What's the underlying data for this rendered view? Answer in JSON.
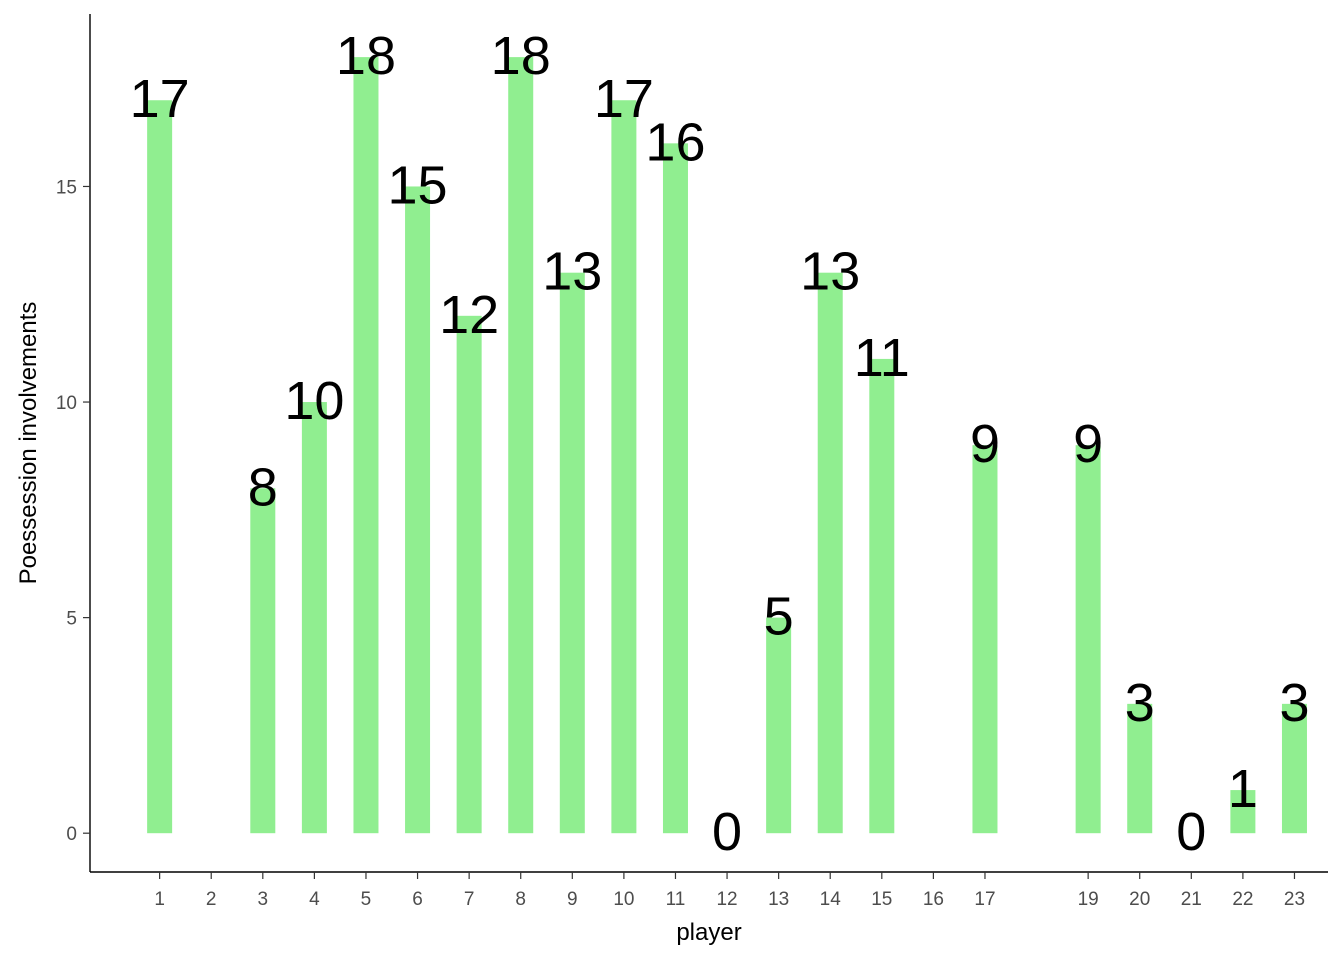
{
  "chart_data": {
    "type": "bar",
    "title": "",
    "xlabel": "player",
    "ylabel": "Poessession involvements",
    "bar_color": "#90EE90",
    "x_scale": "continuous",
    "grid": false,
    "legend": "none",
    "xlim": [
      -0.35,
      23.65
    ],
    "ylim": [
      -0.9,
      19.0
    ],
    "x_ticks": [
      1,
      2,
      3,
      4,
      5,
      6,
      7,
      8,
      9,
      10,
      11,
      12,
      13,
      14,
      15,
      16,
      17,
      19,
      20,
      21,
      22,
      23
    ],
    "y_ticks": [
      0,
      5,
      10,
      15
    ],
    "categories": [
      "1",
      "2",
      "3",
      "4",
      "5",
      "6",
      "7",
      "8",
      "9",
      "10",
      "11",
      "12",
      "13",
      "14",
      "15",
      "16",
      "17",
      "19",
      "20",
      "21",
      "22",
      "23"
    ],
    "bars": [
      {
        "player": 1,
        "value": 17,
        "label": "17"
      },
      {
        "player": 3,
        "value": 8,
        "label": "8"
      },
      {
        "player": 4,
        "value": 10,
        "label": "10"
      },
      {
        "player": 5,
        "value": 18,
        "label": "18"
      },
      {
        "player": 6,
        "value": 15,
        "label": "15"
      },
      {
        "player": 7,
        "value": 12,
        "label": "12"
      },
      {
        "player": 8,
        "value": 18,
        "label": "18"
      },
      {
        "player": 9,
        "value": 13,
        "label": "13"
      },
      {
        "player": 10,
        "value": 17,
        "label": "17"
      },
      {
        "player": 11,
        "value": 16,
        "label": "16"
      },
      {
        "player": 12,
        "value": 0,
        "label": "0"
      },
      {
        "player": 13,
        "value": 5,
        "label": "5"
      },
      {
        "player": 14,
        "value": 13,
        "label": "13"
      },
      {
        "player": 15,
        "value": 11,
        "label": "11"
      },
      {
        "player": 17,
        "value": 9,
        "label": "9"
      },
      {
        "player": 19,
        "value": 9,
        "label": "9"
      },
      {
        "player": 20,
        "value": 3,
        "label": "3"
      },
      {
        "player": 21,
        "value": 0,
        "label": "0"
      },
      {
        "player": 22,
        "value": 1,
        "label": "1"
      },
      {
        "player": 23,
        "value": 3,
        "label": "3"
      }
    ]
  }
}
